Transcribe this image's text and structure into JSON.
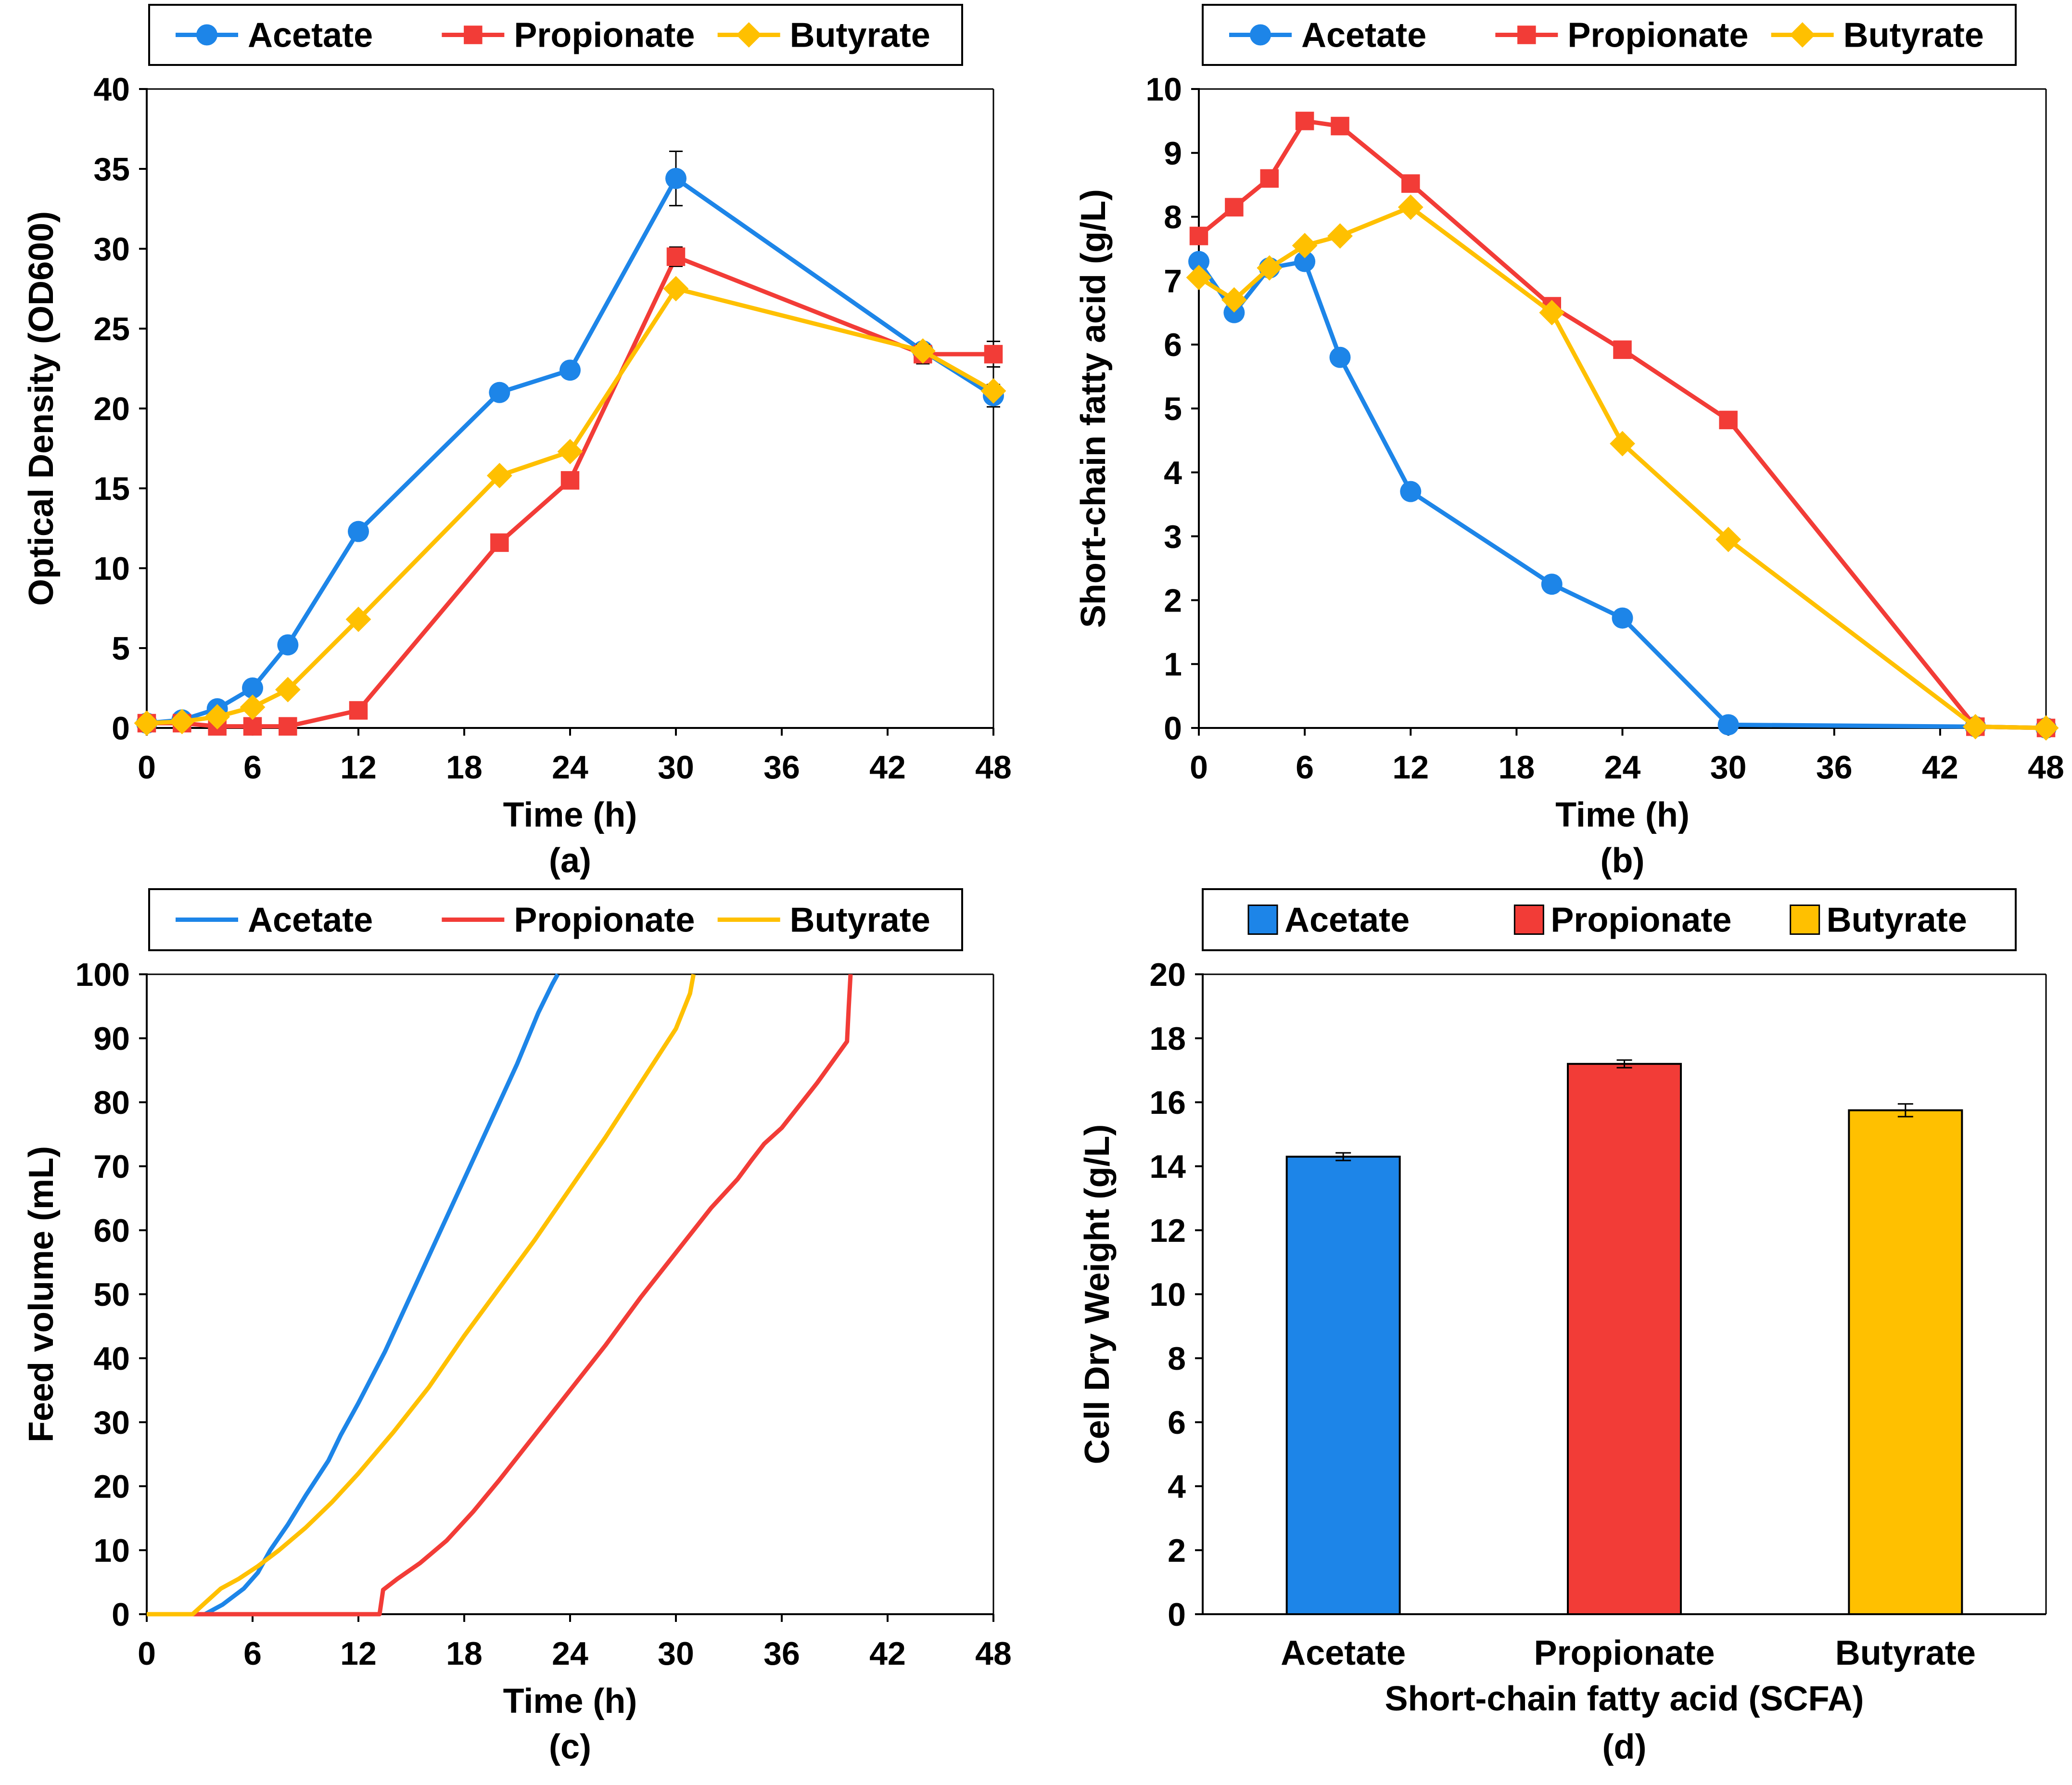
{
  "colors": {
    "acetate": "#1D85E8",
    "propionate": "#F23C37",
    "butyrate": "#FFC000"
  },
  "chart_data": [
    {
      "id": "a",
      "type": "line",
      "panel_label": "(a)",
      "xlabel": "Time (h)",
      "ylabel": "Optical Density (OD600)",
      "xlim": [
        0,
        48
      ],
      "ylim": [
        0,
        40
      ],
      "xticks": [
        "0",
        "6",
        "12",
        "18",
        "24",
        "30",
        "36",
        "42",
        "48"
      ],
      "yticks": [
        "0",
        "5",
        "10",
        "15",
        "20",
        "25",
        "30",
        "35",
        "40"
      ],
      "legend": {
        "placement": "top",
        "markers": true
      },
      "series": [
        {
          "name": "Acetate",
          "key": "acetate",
          "marker": "circle",
          "x": [
            0,
            2,
            4,
            6,
            8,
            12,
            20,
            24,
            30,
            44,
            48
          ],
          "y": [
            0.3,
            0.5,
            1.2,
            2.5,
            5.2,
            12.3,
            21.0,
            22.4,
            34.4,
            23.6,
            20.8
          ],
          "err": [
            0,
            0,
            0,
            0,
            0,
            0,
            0,
            0,
            1.7,
            0,
            0.7
          ]
        },
        {
          "name": "Propionate",
          "key": "propionate",
          "marker": "square",
          "x": [
            0,
            2,
            4,
            6,
            8,
            12,
            20,
            24,
            30,
            44,
            48
          ],
          "y": [
            0.3,
            0.3,
            0.1,
            0.1,
            0.1,
            1.1,
            11.6,
            15.5,
            29.5,
            23.4,
            23.4
          ],
          "err": [
            0,
            0,
            0,
            0,
            0,
            0,
            0,
            0,
            0.6,
            0.6,
            0.8
          ]
        },
        {
          "name": "Butyrate",
          "key": "butyrate",
          "marker": "diamond",
          "x": [
            0,
            2,
            4,
            6,
            8,
            12,
            20,
            24,
            30,
            44,
            48
          ],
          "y": [
            0.3,
            0.4,
            0.7,
            1.3,
            2.4,
            6.8,
            15.8,
            17.3,
            27.5,
            23.6,
            21.1
          ],
          "err": [
            0,
            0,
            0,
            0,
            0,
            0,
            0,
            0,
            0,
            0,
            0
          ]
        }
      ]
    },
    {
      "id": "b",
      "type": "line",
      "panel_label": "(b)",
      "xlabel": "Time (h)",
      "ylabel": "Short-chain fatty acid (g/L)",
      "xlim": [
        0,
        48
      ],
      "ylim": [
        0,
        10
      ],
      "xticks": [
        "0",
        "6",
        "12",
        "18",
        "24",
        "30",
        "36",
        "42",
        "48"
      ],
      "yticks": [
        "0",
        "1",
        "2",
        "3",
        "4",
        "5",
        "6",
        "7",
        "8",
        "9",
        "10"
      ],
      "legend": {
        "placement": "top",
        "markers": true
      },
      "series": [
        {
          "name": "Acetate",
          "key": "acetate",
          "marker": "circle",
          "x": [
            0,
            2,
            4,
            6,
            8,
            12,
            20,
            24,
            30,
            44,
            48
          ],
          "y": [
            7.3,
            6.5,
            7.2,
            7.3,
            5.8,
            3.7,
            2.25,
            1.72,
            0.05,
            0.02,
            0.0
          ]
        },
        {
          "name": "Propionate",
          "key": "propionate",
          "marker": "square",
          "x": [
            0,
            2,
            4,
            6,
            8,
            12,
            20,
            24,
            30,
            44,
            48
          ],
          "y": [
            7.7,
            8.15,
            8.6,
            9.5,
            9.42,
            8.52,
            6.6,
            5.92,
            4.82,
            0.02,
            0.0
          ]
        },
        {
          "name": "Butyrate",
          "key": "butyrate",
          "marker": "diamond",
          "x": [
            0,
            2,
            4,
            6,
            8,
            12,
            20,
            24,
            30,
            44,
            48
          ],
          "y": [
            7.05,
            6.7,
            7.2,
            7.55,
            7.7,
            8.15,
            6.5,
            4.45,
            2.95,
            0.02,
            0.0
          ]
        }
      ]
    },
    {
      "id": "c",
      "type": "line",
      "panel_label": "(c)",
      "xlabel": "Time (h)",
      "ylabel": "Feed volume (mL)",
      "xlim": [
        0,
        48
      ],
      "ylim": [
        0,
        100
      ],
      "xticks": [
        "0",
        "6",
        "12",
        "18",
        "24",
        "30",
        "36",
        "42",
        "48"
      ],
      "yticks": [
        "0",
        "10",
        "20",
        "30",
        "40",
        "50",
        "60",
        "70",
        "80",
        "90",
        "100"
      ],
      "legend": {
        "placement": "top",
        "markers": false
      },
      "series": [
        {
          "name": "Acetate",
          "key": "acetate",
          "x": [
            0,
            3.3,
            4.3,
            5.5,
            6.3,
            7.0,
            8.0,
            9.0,
            10.3,
            11.0,
            12.0,
            13.5,
            15.0,
            16.5,
            18.0,
            19.5,
            21.0,
            22.2,
            23.0,
            23.3
          ],
          "y": [
            0,
            0,
            1.5,
            4,
            6.5,
            10,
            14,
            18.5,
            24,
            28,
            33,
            41,
            50,
            59,
            68,
            77,
            86,
            94,
            98.5,
            100
          ]
        },
        {
          "name": "Propionate",
          "key": "propionate",
          "x": [
            0,
            13.2,
            13.4,
            14.2,
            15.5,
            17.0,
            18.5,
            20.0,
            22.0,
            24.0,
            26.0,
            28.0,
            30.0,
            32.0,
            33.5,
            34.3,
            35.0,
            36.0,
            38.0,
            39.7,
            39.8,
            39.9
          ],
          "y": [
            0,
            0,
            3.8,
            5.5,
            8,
            11.5,
            16,
            21,
            28,
            35,
            42,
            49.5,
            56.5,
            63.5,
            68,
            71,
            73.5,
            76,
            83,
            89.5,
            95,
            100
          ]
        },
        {
          "name": "Butyrate",
          "key": "butyrate",
          "x": [
            0,
            2.6,
            3.6,
            4.2,
            5.2,
            6.3,
            7.5,
            9.0,
            10.5,
            12.0,
            14.0,
            16.0,
            18.0,
            20.0,
            22.0,
            24.0,
            26.0,
            28.0,
            30.0,
            30.8,
            31.0
          ],
          "y": [
            0,
            0,
            2.5,
            4,
            5.5,
            7.5,
            10,
            13.5,
            17.5,
            22,
            28.5,
            35.5,
            43.5,
            51,
            58.5,
            66.5,
            74.5,
            83,
            91.5,
            97,
            100
          ]
        }
      ]
    },
    {
      "id": "d",
      "type": "bar",
      "panel_label": "(d)",
      "xlabel": "Short-chain fatty acid (SCFA)",
      "ylabel": "Cell Dry Weight (g/L)",
      "ylim": [
        0,
        20
      ],
      "yticks": [
        "0",
        "2",
        "4",
        "6",
        "8",
        "10",
        "12",
        "14",
        "16",
        "18",
        "20"
      ],
      "categories": [
        "Acetate",
        "Propionate",
        "Butyrate"
      ],
      "keys": [
        "acetate",
        "propionate",
        "butyrate"
      ],
      "values": [
        14.3,
        17.2,
        15.75
      ],
      "err": [
        0.12,
        0.12,
        0.2
      ],
      "legend": {
        "placement": "top",
        "labels": [
          "Acetate",
          "Propionate",
          "Butyrate"
        ]
      }
    }
  ]
}
